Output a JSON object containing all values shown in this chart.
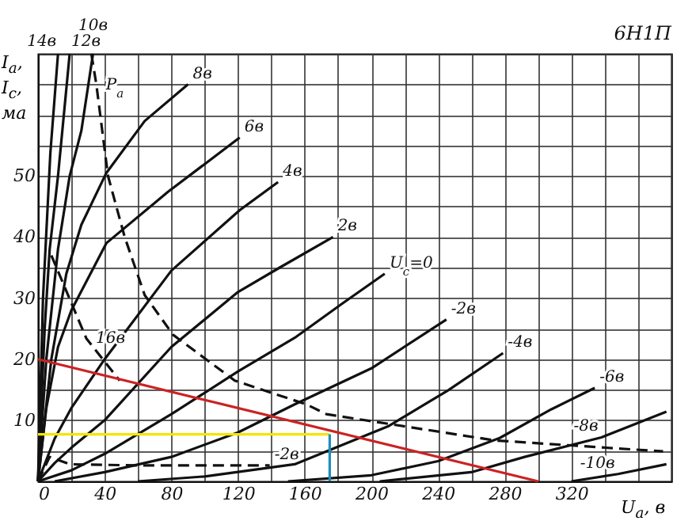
{
  "chart_data": {
    "type": "line",
    "xlabel": "U$_{а}$, в",
    "ylabel": "I$_{а}$, I$_{с}$, ма",
    "annotations": [
      "6Н1П"
    ],
    "xlim": [
      0,
      380
    ],
    "ylim": [
      0,
      70
    ],
    "xticks": [
      0,
      {
        "value": 20,
        "label": null
      },
      40,
      {
        "value": 60,
        "label": null
      },
      80,
      {
        "value": 100,
        "label": null
      },
      120,
      {
        "value": 140,
        "label": null
      },
      160,
      {
        "value": 180,
        "label": null
      },
      200,
      {
        "value": 220,
        "label": null
      },
      240,
      {
        "value": 260,
        "label": null
      },
      280,
      {
        "value": 300,
        "label": null
      },
      320,
      {
        "value": 340,
        "label": null
      },
      {
        "value": 360,
        "label": null
      },
      {
        "value": 380,
        "label": null
      }
    ],
    "yticks": [
      {
        "value": 0,
        "label": null
      },
      {
        "value": 5,
        "label": null
      },
      10,
      {
        "value": 15,
        "label": null
      },
      20,
      {
        "value": 25,
        "label": null
      },
      30,
      {
        "value": 35,
        "label": null
      },
      40,
      {
        "value": 45,
        "label": null
      },
      50,
      {
        "value": 55,
        "label": null
      },
      {
        "value": 60,
        "label": null
      },
      {
        "value": 65,
        "label": null
      },
      {
        "value": 70,
        "label": null
      }
    ],
    "grid": true,
    "marker": "none",
    "series": [
      {
        "name": "14в",
        "color": "#111111",
        "x": [
          0,
          3,
          7.4,
          12
        ],
        "values": [
          0,
          30,
          53.7,
          70
        ]
      },
      {
        "name": "12в",
        "color": "#111111",
        "x": [
          0,
          4,
          7,
          12,
          19
        ],
        "values": [
          0,
          25,
          38,
          50,
          70
        ]
      },
      {
        "name": "10в",
        "color": "#111111",
        "x": [
          0,
          5,
          12,
          19,
          26,
          33
        ],
        "values": [
          0,
          20,
          38,
          50,
          57.4,
          70
        ]
      },
      {
        "name": "8в",
        "color": "#111111",
        "x": [
          0,
          8,
          17,
          26,
          41,
          64,
          90
        ],
        "values": [
          0,
          20,
          34,
          42,
          50.5,
          59,
          65
        ]
      },
      {
        "name": "6в",
        "color": "#111111",
        "x": [
          0,
          5,
          12,
          20,
          41,
          78,
          121
        ],
        "values": [
          0,
          12,
          22,
          28,
          39,
          47.4,
          56.3
        ]
      },
      {
        "name": "4в",
        "color": "#111111",
        "x": [
          0,
          10,
          20,
          40,
          80,
          121,
          144
        ],
        "values": [
          0,
          7,
          12,
          20,
          34.5,
          44.4,
          49
        ]
      },
      {
        "name": "2в",
        "color": "#111111",
        "x": [
          0,
          10,
          20,
          40,
          80,
          120,
          145,
          177
        ],
        "values": [
          0,
          3,
          5.5,
          10,
          22,
          31,
          35,
          40
        ]
      },
      {
        "name": "U$_{c}$=0",
        "color": "#111111",
        "x": [
          0,
          20,
          40,
          80,
          120,
          154,
          182,
          208
        ],
        "values": [
          0,
          1.8,
          4.5,
          11,
          18,
          23.5,
          29,
          34
        ]
      },
      {
        "name": "-2в",
        "color": "#111111",
        "x": [
          10,
          40,
          80,
          120,
          154,
          200,
          245
        ],
        "values": [
          0,
          1.5,
          4,
          8,
          12.6,
          18.5,
          26.5
        ]
      },
      {
        "name": "-4в",
        "color": "#111111",
        "x": [
          60,
          100,
          154,
          210,
          246,
          279
        ],
        "values": [
          0,
          0.8,
          2.8,
          9,
          14.9,
          21
        ]
      },
      {
        "name": "-6в",
        "color": "#111111",
        "x": [
          150,
          200,
          240,
          277,
          308,
          334
        ],
        "values": [
          0,
          1,
          3.3,
          7.1,
          11.8,
          15.3
        ]
      },
      {
        "name": "-8в",
        "color": "#111111",
        "x": [
          205,
          260,
          292,
          338,
          377
        ],
        "values": [
          0,
          1.5,
          4,
          7.2,
          11.4
        ]
      },
      {
        "name": "-10в",
        "color": "#111111",
        "x": [
          320,
          348,
          377
        ],
        "values": [
          0,
          1.2,
          2.8
        ]
      },
      {
        "name": "P$_{а}$",
        "color": "#111111",
        "line_style": "dashed",
        "x": [
          32,
          35,
          42,
          52,
          64,
          81,
          118,
          161,
          173,
          274,
          375
        ],
        "values": [
          70,
          65,
          50,
          40,
          30.5,
          24,
          16.5,
          12.6,
          11,
          6.7,
          4.9
        ]
      },
      {
        "name": "16в",
        "color": "#111111",
        "line_style": "dashed",
        "x": [
          8,
          29,
          49
        ],
        "values": [
          37,
          23.4,
          16.5
        ]
      },
      {
        "name": "-2в",
        "color": "#111111",
        "line_style": "dashed",
        "x": [
          0,
          7,
          19,
          60,
          100,
          139
        ],
        "values": [
          0,
          4,
          2.8,
          2.6,
          2.6,
          2.6
        ]
      },
      {
        "color": "#cc2222",
        "x": [
          0,
          300
        ],
        "values": [
          20,
          0
        ]
      },
      {
        "color": "#f2e600",
        "x": [
          0,
          175
        ],
        "values": [
          7.7,
          7.7
        ]
      },
      {
        "color": "#1a8fc0",
        "x": [
          175,
          175
        ],
        "values": [
          0,
          7.7
        ]
      }
    ]
  }
}
